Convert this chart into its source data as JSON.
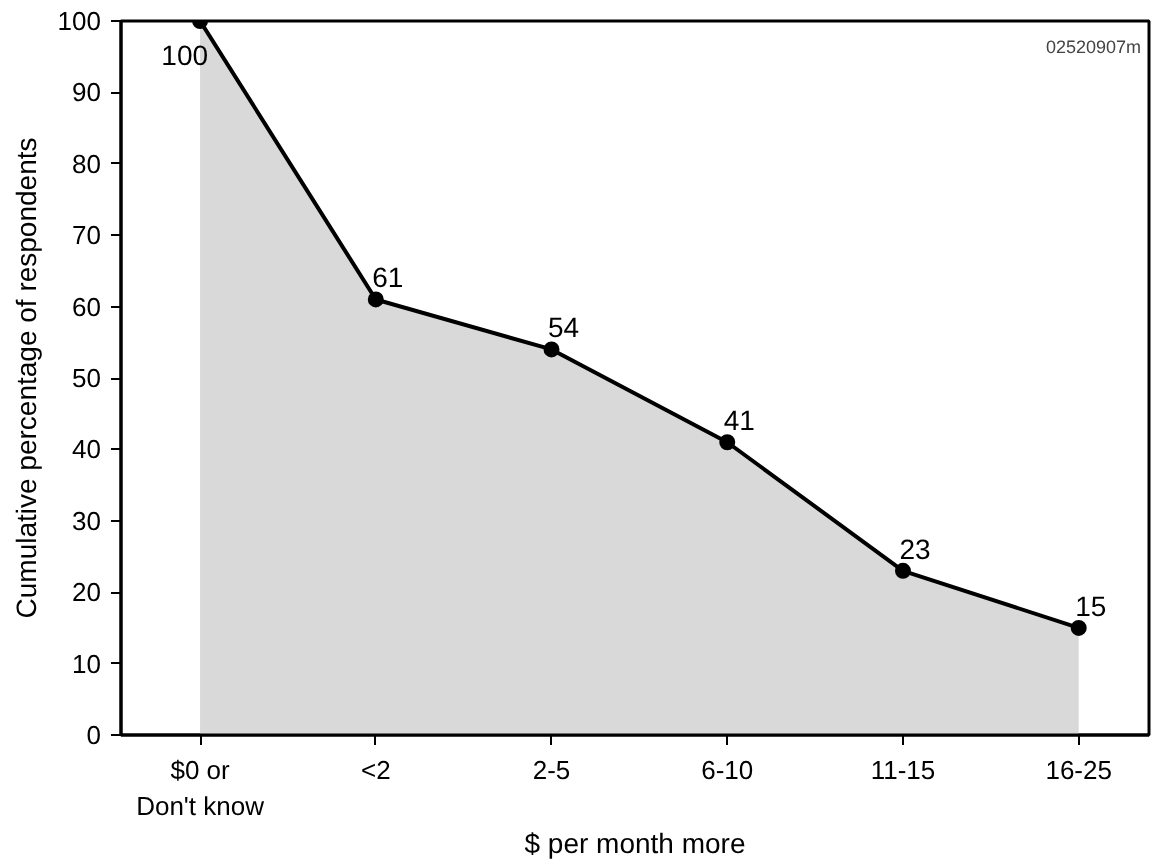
{
  "chart_data": {
    "type": "area",
    "xlabel": "$ per month more",
    "ylabel": "Cumulative percentage of respondents",
    "categories": [
      "$0 or\nDon't know",
      "<2",
      "2-5",
      "6-10",
      "11-15",
      "16-25"
    ],
    "series": [
      {
        "color": "#d9d9d9",
        "values": [
          100,
          61,
          54,
          41,
          23,
          15
        ]
      }
    ],
    "ylim": [
      0,
      100
    ],
    "yticks": [
      0,
      10,
      20,
      30,
      40,
      50,
      60,
      70,
      80,
      90,
      100
    ],
    "marker": "circle",
    "line_style": "solid",
    "data_labels": true,
    "grid": false,
    "annotations": [
      "02520907m"
    ]
  }
}
